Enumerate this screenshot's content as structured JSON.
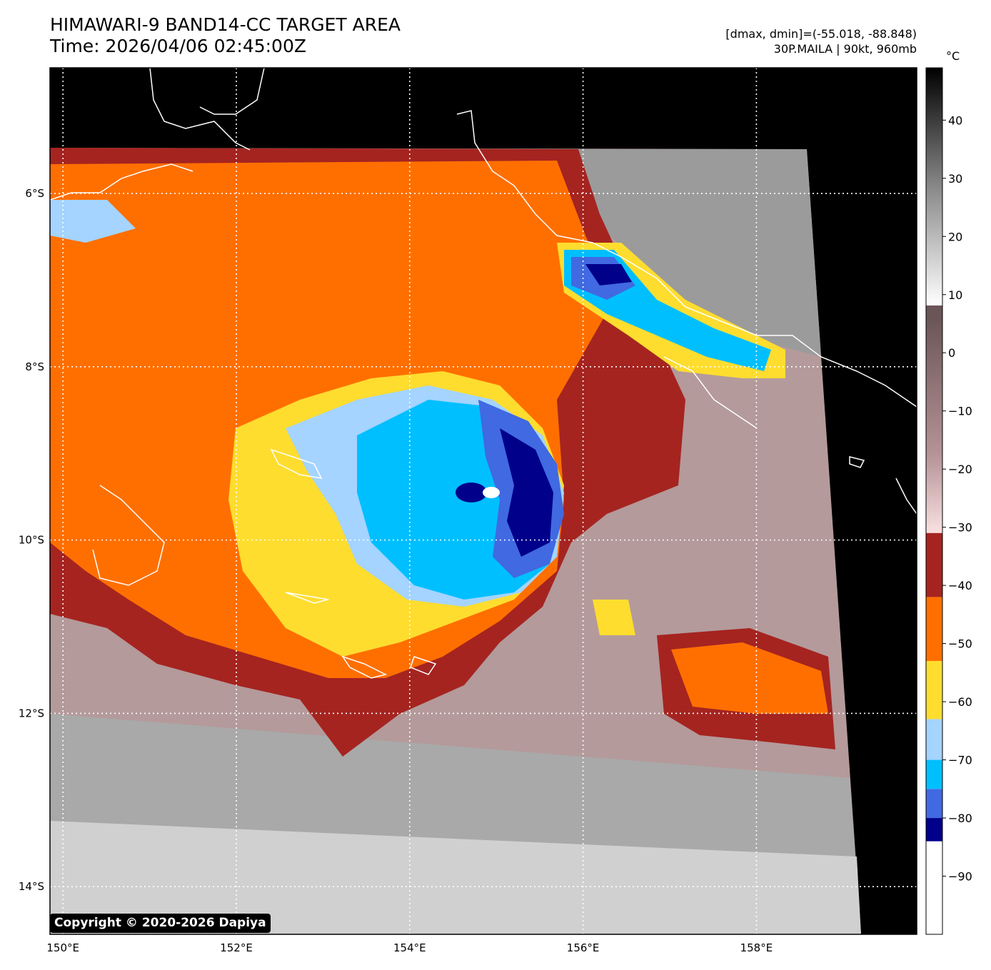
{
  "header": {
    "title_line1": "HIMAWARI-9 BAND14-CC TARGET AREA",
    "title_line2": "Time: 2026/04/06 02:45:00Z",
    "range_text": "[dmax, dmin]=(-55.018, -88.848)",
    "storm_text": "30P.MAILA | 90kt, 960mb"
  },
  "map": {
    "lon_labels": [
      "150°E",
      "152°E",
      "154°E",
      "156°E",
      "158°E"
    ],
    "lat_labels": [
      "6°S",
      "8°S",
      "10°S",
      "12°S",
      "14°S"
    ],
    "lon_values": [
      150,
      152,
      154,
      156,
      158
    ],
    "lat_values": [
      -6,
      -8,
      -10,
      -12,
      -14
    ],
    "lon_range": [
      149.85,
      159.85
    ],
    "lat_range": [
      -14.55,
      -4.55
    ],
    "gridlines": "dotted white",
    "coastlines": "white"
  },
  "colorbar": {
    "unit": "°C",
    "range": [
      -100,
      49
    ],
    "tick_labels": [
      "40",
      "30",
      "20",
      "10",
      "0",
      "−10",
      "−20",
      "−30",
      "−40",
      "−50",
      "−60",
      "−70",
      "−80",
      "−90"
    ],
    "tick_values": [
      40,
      30,
      20,
      10,
      0,
      -10,
      -20,
      -30,
      -40,
      -50,
      -60,
      -70,
      -80,
      -90
    ],
    "segments": [
      {
        "from": -100,
        "to": -84,
        "color": "#ffffff"
      },
      {
        "from": -84,
        "to": -80,
        "color": "#00008b"
      },
      {
        "from": -80,
        "to": -75,
        "color": "#4169e1"
      },
      {
        "from": -75,
        "to": -70,
        "color": "#00bfff"
      },
      {
        "from": -70,
        "to": -63,
        "color": "#a4d4ff"
      },
      {
        "from": -63,
        "to": -53,
        "color": "#fedd2f"
      },
      {
        "from": -53,
        "to": -42,
        "color": "#ff6f00"
      },
      {
        "from": -42,
        "to": -31,
        "color": "#a52420"
      }
    ]
  },
  "copyright": "Copyright © 2020-2026 Dapiya"
}
